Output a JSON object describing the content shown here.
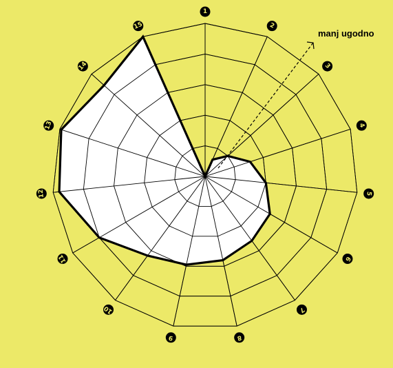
{
  "chart_data": {
    "type": "radar",
    "axes": [
      "1",
      "2",
      "3",
      "4",
      "5",
      "6",
      "7",
      "8",
      "9",
      "10",
      "11",
      "12",
      "13",
      "14",
      "15"
    ],
    "rmax": 5,
    "grid_levels": [
      1,
      2,
      3,
      4,
      5
    ],
    "values": [
      0,
      0.6,
      1.0,
      1.55,
      2.0,
      2.45,
      2.6,
      2.8,
      2.95,
      3.2,
      4.0,
      4.8,
      4.95,
      4.45,
      5.0
    ],
    "annotation": "manj ugodno",
    "colors": {
      "background": "#ece968",
      "fill": "#ffffff",
      "line": "#000000"
    }
  }
}
